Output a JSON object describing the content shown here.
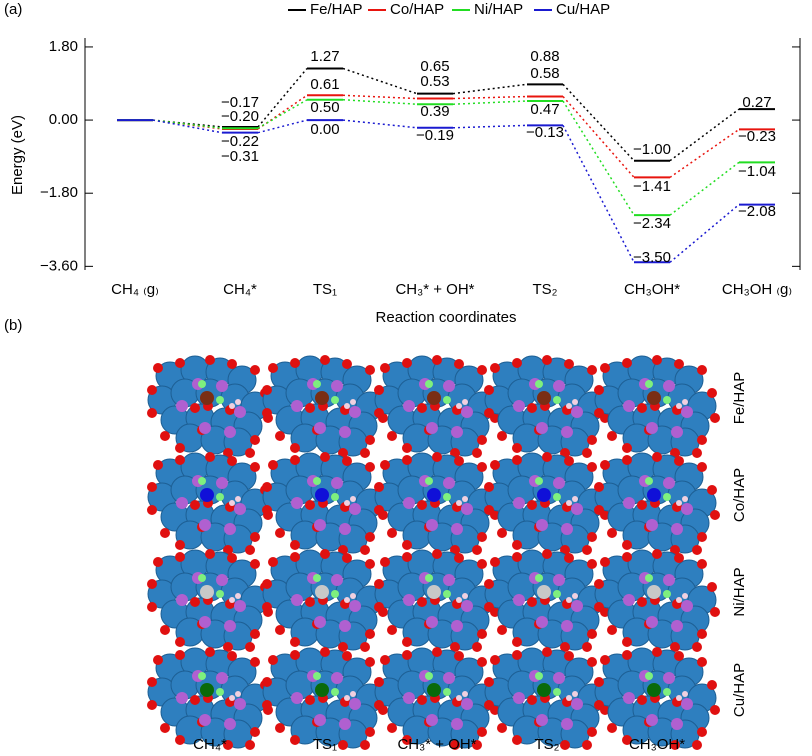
{
  "chart_data": {
    "type": "energy",
    "ylabel": "Energy (eV)",
    "xlabel": "Reaction coordinates",
    "categories": [
      "CH₄ ₍g₎",
      "CH₄*",
      "TS₁",
      "CH₃* + OH*",
      "TS₂",
      "CH₃OH*",
      "CH₃OH ₍g₎"
    ],
    "series": [
      {
        "name": "Fe/HAP",
        "color": "#000000",
        "values": [
          0,
          -0.17,
          1.27,
          0.65,
          0.88,
          -1.0,
          0.27
        ],
        "value_labels": [
          null,
          "−0.17",
          "1.27",
          "0.65",
          "0.88",
          "−1.00",
          "0.27"
        ]
      },
      {
        "name": "Co/HAP",
        "color": "#e8140e",
        "values": [
          0,
          -0.22,
          0.61,
          0.53,
          0.58,
          -1.41,
          -0.23
        ],
        "value_labels": [
          null,
          "−0.22",
          "0.61",
          "0.53",
          "0.58",
          "−1.41",
          "−0.23"
        ]
      },
      {
        "name": "Ni/HAP",
        "color": "#22dd22",
        "values": [
          0,
          -0.2,
          0.5,
          0.39,
          0.47,
          -2.34,
          -1.04
        ],
        "value_labels": [
          null,
          "−0.20",
          "0.50",
          "0.39",
          "0.47",
          "−2.34",
          "−1.04"
        ]
      },
      {
        "name": "Cu/HAP",
        "color": "#1a1ad0",
        "values": [
          0,
          -0.31,
          0.0,
          -0.19,
          -0.13,
          -3.5,
          -2.08
        ],
        "value_labels": [
          null,
          "−0.31",
          "0.00",
          "−0.19",
          "−0.13",
          "−3.50",
          "−2.08"
        ]
      }
    ],
    "ylim": [
      -3.69,
      2.02
    ],
    "yticks": [
      {
        "value": 1.8,
        "label": "1.80"
      },
      {
        "value": 0,
        "label": "0.00"
      },
      {
        "value": -1.8,
        "label": "−1.80"
      },
      {
        "value": -3.6,
        "label": "−3.60"
      }
    ],
    "legend": "top"
  },
  "panel_labels": [
    "(a)",
    "(b)"
  ],
  "structures": {
    "columns": [
      "CH₄*",
      "TS₁",
      "CH₃* + OH*",
      "TS₂",
      "CH₃OH*"
    ],
    "rows": [
      "Fe/HAP",
      "Co/HAP",
      "Ni/HAP",
      "Cu/HAP"
    ]
  }
}
